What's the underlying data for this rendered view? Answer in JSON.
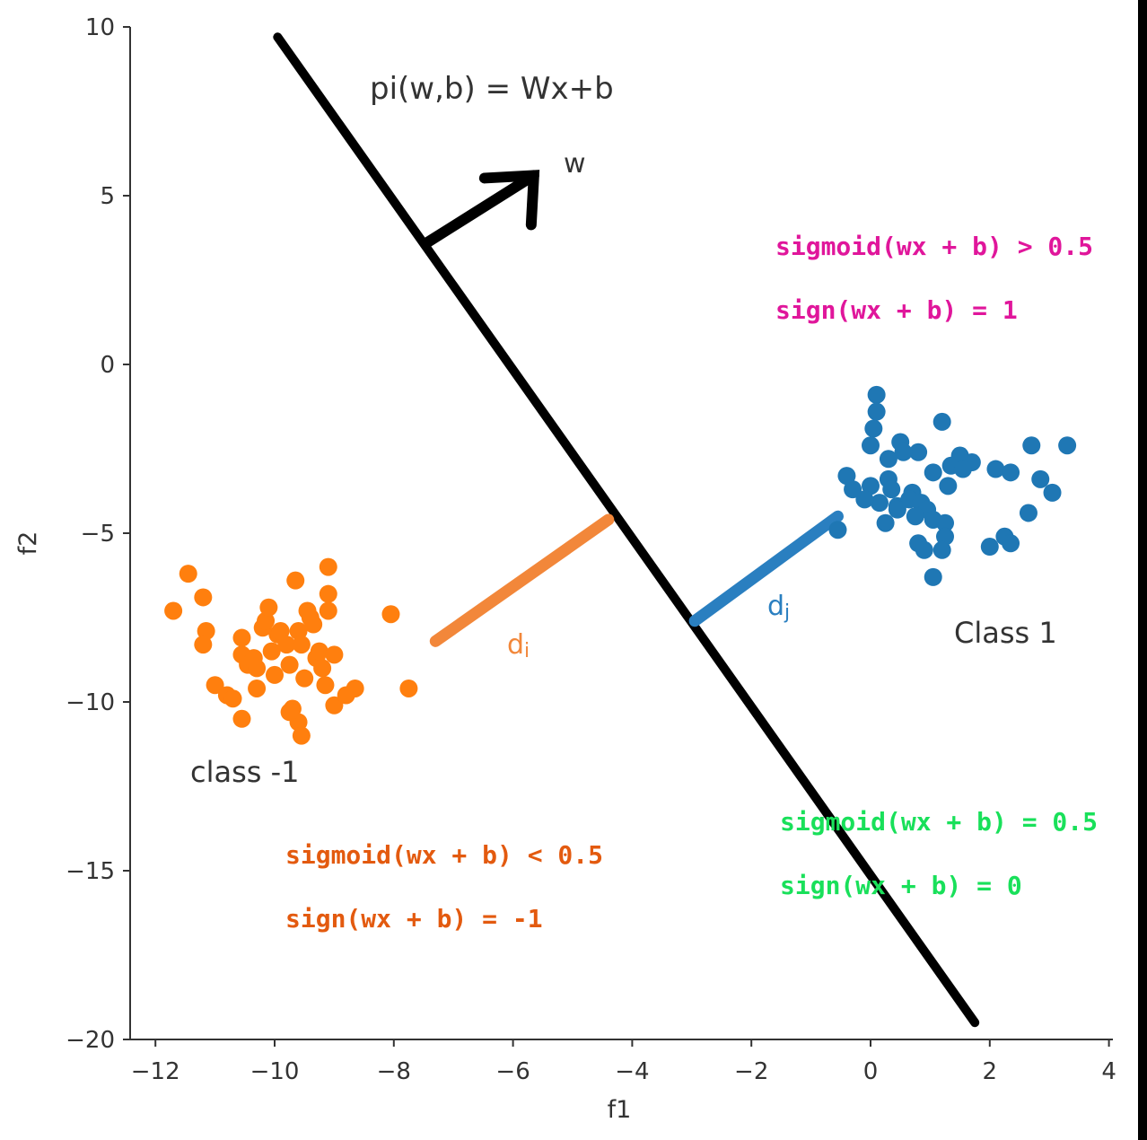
{
  "chart_data": {
    "type": "scatter",
    "xlabel": "f1",
    "ylabel": "f2",
    "xlim": [
      -12.5,
      4
    ],
    "ylim": [
      -20,
      10
    ],
    "xticks": [
      -12,
      -10,
      -8,
      -6,
      -4,
      -2,
      0,
      2,
      4
    ],
    "yticks": [
      10,
      5,
      0,
      -5,
      -10,
      -15,
      -20
    ],
    "xtick_labels": [
      "−12",
      "−10",
      "−8",
      "−6",
      "−4",
      "−2",
      "0",
      "2",
      "4"
    ],
    "ytick_labels": [
      "10",
      "5",
      "0",
      "−5",
      "−10",
      "−15",
      "−20"
    ],
    "series": [
      {
        "color": "#1f77b4",
        "points": [
          [
            0.1,
            -0.9
          ],
          [
            0.1,
            -1.4
          ],
          [
            0.05,
            -1.9
          ],
          [
            1.2,
            -1.7
          ],
          [
            0.0,
            -2.4
          ],
          [
            0.5,
            -2.3
          ],
          [
            0.3,
            -2.8
          ],
          [
            0.8,
            -2.6
          ],
          [
            0.55,
            -2.6
          ],
          [
            1.5,
            -2.7
          ],
          [
            1.7,
            -2.9
          ],
          [
            2.7,
            -2.4
          ],
          [
            3.3,
            -2.4
          ],
          [
            1.35,
            -3.0
          ],
          [
            2.1,
            -3.1
          ],
          [
            2.35,
            -3.2
          ],
          [
            1.05,
            -3.2
          ],
          [
            1.55,
            -3.1
          ],
          [
            0.3,
            -3.4
          ],
          [
            -0.4,
            -3.3
          ],
          [
            -0.3,
            -3.7
          ],
          [
            0.0,
            -3.6
          ],
          [
            0.35,
            -3.7
          ],
          [
            0.7,
            -3.8
          ],
          [
            1.3,
            -3.6
          ],
          [
            2.85,
            -3.4
          ],
          [
            3.05,
            -3.8
          ],
          [
            0.15,
            -4.1
          ],
          [
            0.45,
            -4.2
          ],
          [
            0.65,
            -4.0
          ],
          [
            0.85,
            -4.1
          ],
          [
            0.95,
            -4.3
          ],
          [
            2.65,
            -4.4
          ],
          [
            0.75,
            -4.5
          ],
          [
            1.05,
            -4.6
          ],
          [
            1.25,
            -4.7
          ],
          [
            -0.55,
            -4.9
          ],
          [
            0.45,
            -4.3
          ],
          [
            1.25,
            -5.1
          ],
          [
            2.25,
            -5.1
          ],
          [
            0.8,
            -5.3
          ],
          [
            0.9,
            -5.5
          ],
          [
            2.0,
            -5.4
          ],
          [
            2.35,
            -5.3
          ],
          [
            1.2,
            -5.5
          ],
          [
            1.05,
            -6.3
          ],
          [
            -0.1,
            -4.0
          ],
          [
            0.25,
            -4.7
          ]
        ]
      },
      {
        "color": "#ff7f0e",
        "points": [
          [
            -11.7,
            -7.3
          ],
          [
            -11.45,
            -6.2
          ],
          [
            -11.2,
            -6.9
          ],
          [
            -11.15,
            -7.9
          ],
          [
            -11.2,
            -8.3
          ],
          [
            -11.0,
            -9.5
          ],
          [
            -10.8,
            -9.8
          ],
          [
            -10.7,
            -9.9
          ],
          [
            -10.55,
            -10.5
          ],
          [
            -10.55,
            -8.6
          ],
          [
            -10.45,
            -8.9
          ],
          [
            -10.35,
            -8.7
          ],
          [
            -10.3,
            -9.0
          ],
          [
            -10.2,
            -7.8
          ],
          [
            -10.15,
            -7.6
          ],
          [
            -10.1,
            -7.2
          ],
          [
            -10.05,
            -8.5
          ],
          [
            -10.0,
            -9.2
          ],
          [
            -9.95,
            -8.0
          ],
          [
            -9.9,
            -7.9
          ],
          [
            -9.8,
            -8.3
          ],
          [
            -9.75,
            -8.9
          ],
          [
            -9.7,
            -10.2
          ],
          [
            -9.65,
            -6.4
          ],
          [
            -9.6,
            -10.6
          ],
          [
            -9.55,
            -11.0
          ],
          [
            -9.5,
            -9.3
          ],
          [
            -9.45,
            -7.3
          ],
          [
            -9.4,
            -7.5
          ],
          [
            -9.35,
            -7.7
          ],
          [
            -9.3,
            -8.7
          ],
          [
            -9.25,
            -8.5
          ],
          [
            -9.2,
            -9.0
          ],
          [
            -9.15,
            -9.5
          ],
          [
            -9.1,
            -6.0
          ],
          [
            -9.1,
            -7.3
          ],
          [
            -9.0,
            -8.6
          ],
          [
            -9.1,
            -6.8
          ],
          [
            -9.0,
            -10.1
          ],
          [
            -8.8,
            -9.8
          ],
          [
            -8.65,
            -9.6
          ],
          [
            -8.05,
            -7.4
          ],
          [
            -7.75,
            -9.6
          ],
          [
            -10.3,
            -9.6
          ],
          [
            -9.75,
            -10.3
          ],
          [
            -9.6,
            -7.9
          ],
          [
            -10.55,
            -8.1
          ],
          [
            -9.55,
            -8.3
          ]
        ]
      }
    ],
    "segments": [
      {
        "name": "separating-line",
        "from": [
          -9.95,
          9.7
        ],
        "to": [
          1.75,
          -19.5
        ],
        "color": "#000000"
      },
      {
        "name": "orange-distance",
        "from": [
          -7.3,
          -8.2
        ],
        "to": [
          -4.4,
          -4.6
        ],
        "color": "#f2873a"
      },
      {
        "name": "blue-distance",
        "from": [
          -2.95,
          -7.6
        ],
        "to": [
          -0.55,
          -4.5
        ],
        "color": "#2a7fc0"
      },
      {
        "name": "w-arrow-shaft",
        "from": [
          -7.45,
          3.6
        ],
        "to": [
          -5.65,
          5.6
        ],
        "color": "#000000"
      }
    ],
    "annotations": {
      "plane_equation": "pi(w,b) = Wx+b",
      "w_label": "w",
      "d_i": "d",
      "d_i_sub": "i",
      "d_j": "d",
      "d_j_sub": "j",
      "class_pos": "Class 1",
      "class_neg": "class -1",
      "pos_sigmoid": "sigmoid(wx + b) > 0.5",
      "pos_sign": "sign(wx + b) = 1",
      "zero_sigmoid": "sigmoid(wx + b) = 0.5",
      "zero_sign": "sign(wx + b) = 0",
      "neg_sigmoid": "sigmoid(wx + b) < 0.5",
      "neg_sign": "sign(wx + b) = -1"
    },
    "colors": {
      "pos_annot": "#e0169b",
      "zero_annot": "#19e05a",
      "neg_annot": "#e35a0f",
      "class_pos_points": "#1f77b4",
      "class_neg_points": "#ff7f0e"
    }
  }
}
